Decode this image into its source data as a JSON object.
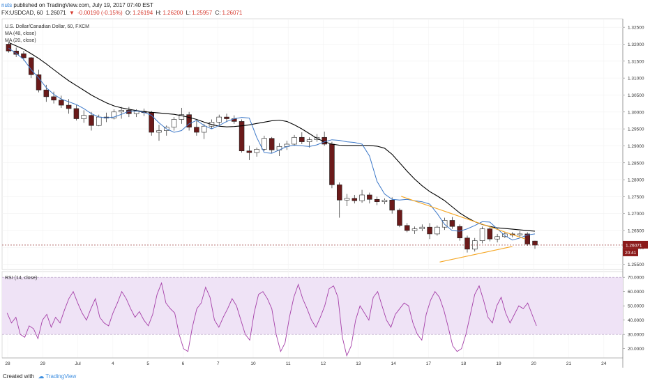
{
  "header": {
    "user": "nuts",
    "published": "published on TradingView.com, July 19, 2017 07:40 EST",
    "symbol": "FX:USDCAD, 60",
    "last": "1.26071",
    "change_arrow": "▼",
    "change": "-0.00190 (-0.15%)",
    "open_label": "O:",
    "open": "1.26194",
    "high_label": "H:",
    "high": "1.26200",
    "low_label": "L:",
    "low": "1.25957",
    "close_label": "C:",
    "close": "1.26071"
  },
  "legend": {
    "title": "U.S. Dollar/Canadian Dollar, 60, FXCM",
    "ma1": "MA (48, close)",
    "ma2": "MA (20, close)",
    "rsi": "RSI (14, close)"
  },
  "footer": {
    "created": "Created with",
    "brand": "TradingView"
  },
  "colors": {
    "up": "#ffffff",
    "down": "#6b1a1a",
    "ma48": "#000000",
    "ma20": "#3c78c8",
    "trendline": "#f5a623",
    "rsi_line": "#a53fa8",
    "rsi_band": "#efe3f6",
    "last_price_bg": "#8b1a1a"
  },
  "chart_data": [
    {
      "type": "candlestick",
      "title": "U.S. Dollar/Canadian Dollar, 60, FXCM",
      "x_tick_labels": [
        "28",
        "29",
        "Jul",
        "4",
        "5",
        "6",
        "7",
        "10",
        "11",
        "12",
        "13",
        "14",
        "17",
        "18",
        "19",
        "20",
        "21",
        "24"
      ],
      "y_tick_labels": [
        "1.32500",
        "1.32000",
        "1.31500",
        "1.31000",
        "1.30500",
        "1.30000",
        "1.29500",
        "1.29000",
        "1.28500",
        "1.28000",
        "1.27500",
        "1.27000",
        "1.26500",
        "1.26000",
        "1.25500"
      ],
      "ylim": [
        1.2535,
        1.3275
      ],
      "last_price": "1.26071",
      "countdown": "20:41",
      "series": [
        {
          "name": "MA (48, close)",
          "type": "line",
          "values": [
            1.3205,
            1.3195,
            1.3185,
            1.3172,
            1.3158,
            1.3142,
            1.3125,
            1.3108,
            1.3092,
            1.3078,
            1.3064,
            1.305,
            1.3038,
            1.3027,
            1.3018,
            1.3012,
            1.3008,
            1.3004,
            1.3001,
            1.2999,
            1.2997,
            1.2995,
            1.2993,
            1.2989,
            1.2984,
            1.2978,
            1.297,
            1.2963,
            1.2958,
            1.2956,
            1.2957,
            1.2959,
            1.2962,
            1.2966,
            1.297,
            1.2974,
            1.2976,
            1.2972,
            1.2962,
            1.295,
            1.2936,
            1.2922,
            1.2912,
            1.2905,
            1.2902,
            1.2901,
            1.2901,
            1.2901,
            1.2901,
            1.2899,
            1.2893,
            1.2875,
            1.285,
            1.2825,
            1.2802,
            1.2782,
            1.2765,
            1.2752,
            1.2738,
            1.272,
            1.2702,
            1.2688,
            1.2676,
            1.2668,
            1.2662,
            1.2658,
            1.2656,
            1.2654,
            1.2652,
            1.265,
            1.2648
          ]
        },
        {
          "name": "MA (20, close)",
          "type": "line",
          "values": [
            1.3188,
            1.3173,
            1.3155,
            1.3125,
            1.31,
            1.3072,
            1.3052,
            1.3038,
            1.303,
            1.3022,
            1.301,
            1.2995,
            1.2985,
            1.2983,
            1.2985,
            1.2993,
            1.3002,
            1.3003,
            1.2999,
            1.299,
            1.2968,
            1.295,
            1.294,
            1.2945,
            1.2965,
            1.2975,
            1.296,
            1.295,
            1.296,
            1.2972,
            1.298,
            1.2984,
            1.2982,
            1.2925,
            1.288,
            1.2878,
            1.2888,
            1.2898,
            1.2902,
            1.29,
            1.2898,
            1.2903,
            1.2912,
            1.2918,
            1.2916,
            1.2912,
            1.291,
            1.2905,
            1.287,
            1.2795,
            1.2758,
            1.2742,
            1.274,
            1.2742,
            1.2738,
            1.2735,
            1.2728,
            1.27,
            1.2668,
            1.265,
            1.2648,
            1.2655,
            1.2665,
            1.2676,
            1.2675,
            1.2655,
            1.2635,
            1.2622,
            1.2628,
            1.2637,
            1.264
          ]
        },
        {
          "name": "Trendline upper",
          "type": "line",
          "x": [
            0.643,
            0.843
          ],
          "values": [
            1.2751,
            1.2625
          ]
        },
        {
          "name": "Trendline lower",
          "type": "line",
          "x": [
            0.705,
            0.822
          ],
          "values": [
            1.2557,
            1.2603
          ]
        }
      ],
      "candles": [
        [
          1.32,
          1.3205,
          1.3175,
          1.318
        ],
        [
          1.318,
          1.319,
          1.3162,
          1.317
        ],
        [
          1.3172,
          1.318,
          1.3152,
          1.316
        ],
        [
          1.316,
          1.3162,
          1.31,
          1.311
        ],
        [
          1.311,
          1.3125,
          1.3058,
          1.3065
        ],
        [
          1.3065,
          1.308,
          1.303,
          1.3045
        ],
        [
          1.3045,
          1.306,
          1.3025,
          1.3035
        ],
        [
          1.3035,
          1.3048,
          1.3012,
          1.302
        ],
        [
          1.302,
          1.3038,
          1.2995,
          1.301
        ],
        [
          1.301,
          1.302,
          1.2975,
          1.298
        ],
        [
          1.298,
          1.3005,
          1.2968,
          1.299
        ],
        [
          1.299,
          1.3,
          1.2945,
          1.296
        ],
        [
          1.296,
          1.2992,
          1.2958,
          1.2985
        ],
        [
          1.2985,
          1.2998,
          1.297,
          1.2982
        ],
        [
          1.2982,
          1.3008,
          1.2978,
          1.3
        ],
        [
          1.3,
          1.3015,
          1.298,
          1.3005
        ],
        [
          1.3005,
          1.3015,
          1.2985,
          1.2995
        ],
        [
          1.2995,
          1.3008,
          1.2985,
          1.3002
        ],
        [
          1.3002,
          1.301,
          1.2988,
          1.2998
        ],
        [
          1.2998,
          1.3003,
          1.293,
          1.294
        ],
        [
          1.294,
          1.2962,
          1.2915,
          1.2945
        ],
        [
          1.2945,
          1.296,
          1.293,
          1.2955
        ],
        [
          1.2955,
          1.2985,
          1.2945,
          1.2978
        ],
        [
          1.2978,
          1.3012,
          1.2965,
          1.2992
        ],
        [
          1.2992,
          1.3,
          1.2945,
          1.2955
        ],
        [
          1.2955,
          1.2975,
          1.293,
          1.294
        ],
        [
          1.294,
          1.2965,
          1.292,
          1.2958
        ],
        [
          1.2958,
          1.2978,
          1.295,
          1.297
        ],
        [
          1.297,
          1.2992,
          1.296,
          1.2985
        ],
        [
          1.2985,
          1.2995,
          1.297,
          1.298
        ],
        [
          1.298,
          1.299,
          1.2965,
          1.2972
        ],
        [
          1.2972,
          1.2978,
          1.288,
          1.2885
        ],
        [
          1.2885,
          1.29,
          1.2858,
          1.288
        ],
        [
          1.288,
          1.2895,
          1.2868,
          1.289
        ],
        [
          1.289,
          1.293,
          1.2885,
          1.2922
        ],
        [
          1.2922,
          1.2926,
          1.2878,
          1.2888
        ],
        [
          1.2888,
          1.2908,
          1.287,
          1.2898
        ],
        [
          1.2898,
          1.2915,
          1.2888,
          1.2905
        ],
        [
          1.2905,
          1.2932,
          1.29,
          1.2925
        ],
        [
          1.2925,
          1.294,
          1.2905,
          1.2912
        ],
        [
          1.2912,
          1.2925,
          1.2895,
          1.2918
        ],
        [
          1.2918,
          1.2935,
          1.2912,
          1.2925
        ],
        [
          1.2925,
          1.2942,
          1.29,
          1.2905
        ],
        [
          1.2905,
          1.2912,
          1.2775,
          1.2785
        ],
        [
          1.2785,
          1.2792,
          1.2688,
          1.274
        ],
        [
          1.274,
          1.2758,
          1.2722,
          1.2745
        ],
        [
          1.2745,
          1.2755,
          1.273,
          1.2738
        ],
        [
          1.2738,
          1.277,
          1.2732,
          1.2755
        ],
        [
          1.2755,
          1.2762,
          1.273,
          1.2742
        ],
        [
          1.2742,
          1.275,
          1.2725,
          1.2735
        ],
        [
          1.2735,
          1.2745,
          1.2728,
          1.274
        ],
        [
          1.274,
          1.2748,
          1.27,
          1.271
        ],
        [
          1.271,
          1.2715,
          1.266,
          1.2665
        ],
        [
          1.2665,
          1.2672,
          1.2645,
          1.265
        ],
        [
          1.265,
          1.2662,
          1.264,
          1.2655
        ],
        [
          1.2655,
          1.2668,
          1.2648,
          1.266
        ],
        [
          1.266,
          1.2672,
          1.2625,
          1.264
        ],
        [
          1.264,
          1.2665,
          1.2635,
          1.266
        ],
        [
          1.266,
          1.2688,
          1.2652,
          1.268
        ],
        [
          1.268,
          1.269,
          1.2655,
          1.2662
        ],
        [
          1.2662,
          1.2668,
          1.262,
          1.2628
        ],
        [
          1.2628,
          1.2635,
          1.2585,
          1.2595
        ],
        [
          1.2595,
          1.2628,
          1.2588,
          1.262
        ],
        [
          1.262,
          1.2662,
          1.2612,
          1.2655
        ],
        [
          1.2655,
          1.266,
          1.2618,
          1.2625
        ],
        [
          1.2625,
          1.264,
          1.2615,
          1.2632
        ],
        [
          1.2632,
          1.2645,
          1.2628,
          1.264
        ],
        [
          1.264,
          1.2645,
          1.263,
          1.2637
        ],
        [
          1.2637,
          1.2648,
          1.263,
          1.264
        ],
        [
          1.264,
          1.2645,
          1.2605,
          1.261
        ],
        [
          1.2619,
          1.262,
          1.2596,
          1.2607
        ]
      ]
    },
    {
      "type": "line",
      "title": "RSI (14, close)",
      "y_tick_labels": [
        "70.0000",
        "60.0000",
        "50.0000",
        "40.0000",
        "30.0000",
        "20.0000"
      ],
      "ylim": [
        13.5,
        74
      ],
      "band": [
        30,
        70
      ],
      "series": [
        {
          "name": "RSI (14, close)",
          "values": [
            45,
            38,
            42,
            30,
            28,
            36,
            34,
            27,
            40,
            44,
            35,
            42,
            38,
            47,
            55,
            60,
            52,
            45,
            40,
            48,
            55,
            42,
            38,
            36,
            45,
            52,
            60,
            55,
            48,
            42,
            46,
            40,
            36,
            44,
            58,
            66,
            52,
            48,
            45,
            30,
            20,
            18,
            35,
            48,
            52,
            63,
            56,
            40,
            35,
            42,
            48,
            55,
            50,
            40,
            30,
            26,
            45,
            58,
            60,
            55,
            48,
            30,
            18,
            24,
            42,
            56,
            65,
            55,
            48,
            40,
            35,
            42,
            50,
            62,
            64,
            56,
            28,
            15,
            22,
            40,
            50,
            45,
            40,
            56,
            60,
            50,
            40,
            35,
            44,
            48,
            52,
            50,
            38,
            30,
            26,
            44,
            54,
            60,
            56,
            47,
            35,
            22,
            18,
            20,
            30,
            44,
            58,
            64,
            54,
            42,
            38,
            50,
            56,
            45,
            38,
            44,
            50,
            48,
            52,
            44,
            36
          ]
        }
      ]
    }
  ]
}
